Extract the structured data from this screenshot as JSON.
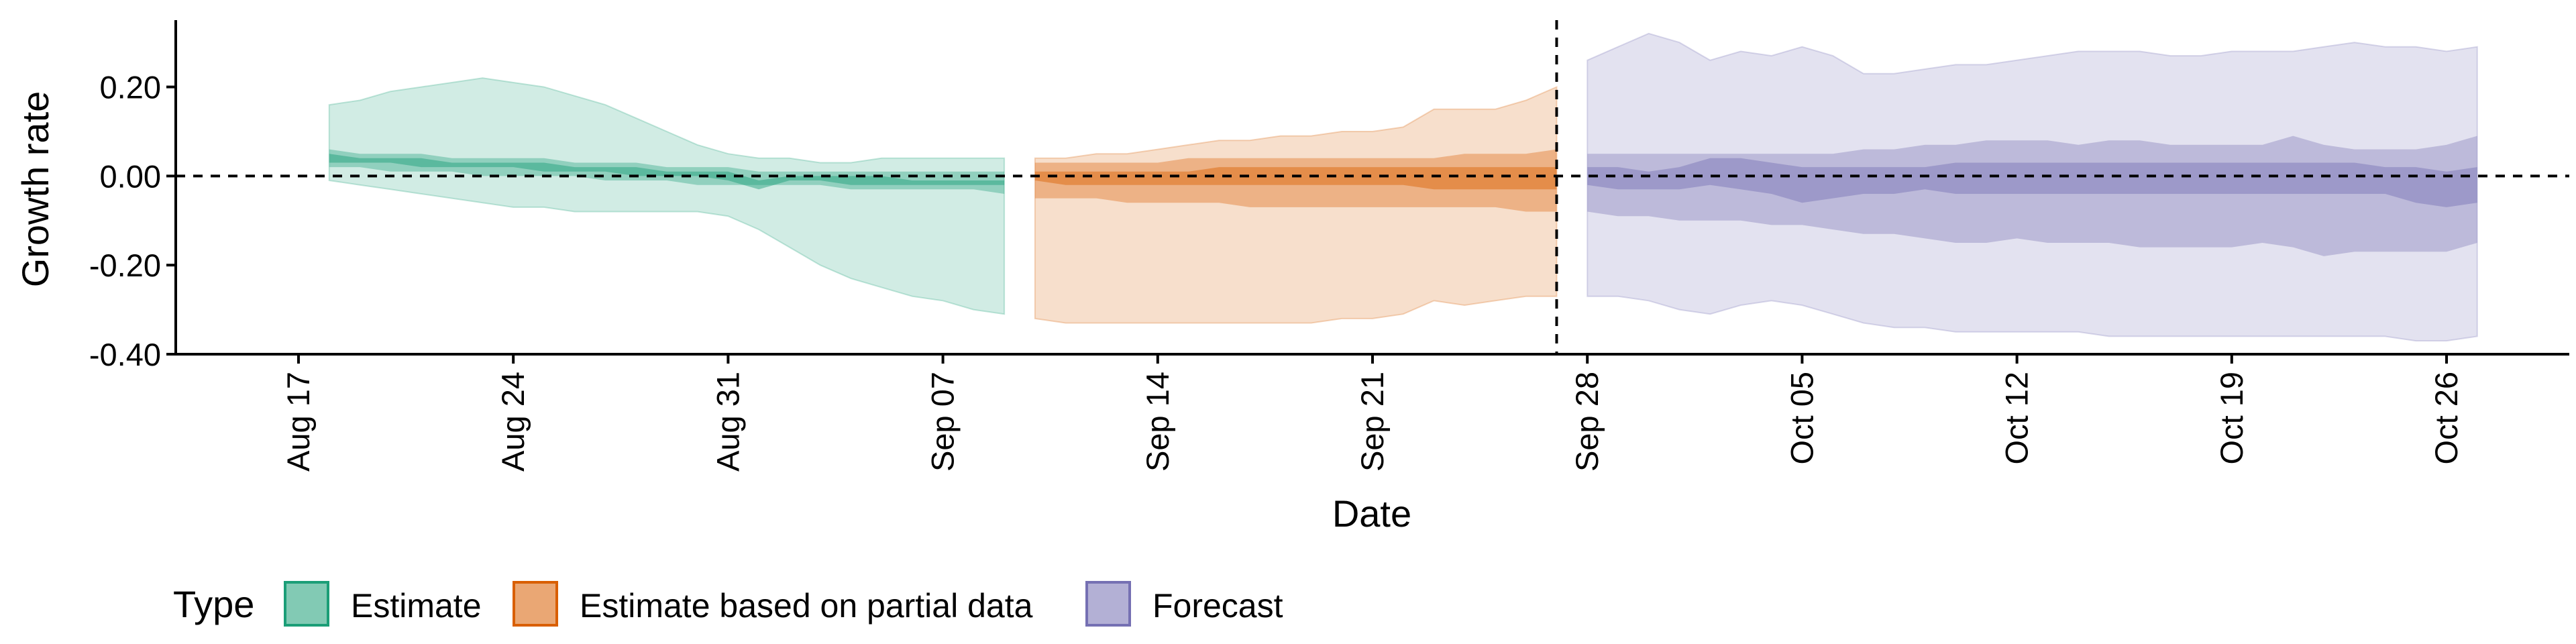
{
  "chart_data": {
    "type": "area",
    "xlabel": "Date",
    "ylabel": "Growth rate",
    "xlim": [
      "2020-08-13",
      "2020-10-30"
    ],
    "ylim": [
      -0.4,
      0.35
    ],
    "x_ticks": [
      {
        "date": "2020-08-17",
        "label": "Aug 17"
      },
      {
        "date": "2020-08-24",
        "label": "Aug 24"
      },
      {
        "date": "2020-08-31",
        "label": "Aug 31"
      },
      {
        "date": "2020-09-07",
        "label": "Sep 07"
      },
      {
        "date": "2020-09-14",
        "label": "Sep 14"
      },
      {
        "date": "2020-09-21",
        "label": "Sep 21"
      },
      {
        "date": "2020-09-28",
        "label": "Sep 28"
      },
      {
        "date": "2020-10-05",
        "label": "Oct 05"
      },
      {
        "date": "2020-10-12",
        "label": "Oct 12"
      },
      {
        "date": "2020-10-19",
        "label": "Oct 19"
      },
      {
        "date": "2020-10-26",
        "label": "Oct 26"
      }
    ],
    "y_ticks": [
      {
        "value": 0.2,
        "label": "0.20"
      },
      {
        "value": 0.0,
        "label": "0.00"
      },
      {
        "value": -0.2,
        "label": "-0.20"
      },
      {
        "value": -0.4,
        "label": "-0.40"
      }
    ],
    "reference_lines": {
      "horizontal_y": 0.0,
      "vertical_date": "2020-09-27"
    },
    "grid": false,
    "legend": {
      "title": "Type",
      "position": "bottom-left",
      "items": [
        {
          "label": "Estimate",
          "color": "#1b9e77"
        },
        {
          "label": "Estimate based on partial data",
          "color": "#d95f02"
        },
        {
          "label": "Forecast",
          "color": "#7570b3"
        }
      ]
    },
    "series": [
      {
        "name": "Estimate",
        "color": "#1b9e77",
        "x": [
          "2020-08-18",
          "2020-08-19",
          "2020-08-20",
          "2020-08-21",
          "2020-08-22",
          "2020-08-23",
          "2020-08-24",
          "2020-08-25",
          "2020-08-26",
          "2020-08-27",
          "2020-08-28",
          "2020-08-29",
          "2020-08-30",
          "2020-08-31",
          "2020-09-01",
          "2020-09-02",
          "2020-09-03",
          "2020-09-04",
          "2020-09-05",
          "2020-09-06",
          "2020-09-07",
          "2020-09-08",
          "2020-09-09"
        ],
        "lower_90": [
          -0.01,
          -0.02,
          -0.03,
          -0.04,
          -0.05,
          -0.06,
          -0.07,
          -0.07,
          -0.08,
          -0.08,
          -0.08,
          -0.08,
          -0.08,
          -0.09,
          -0.12,
          -0.16,
          -0.2,
          -0.23,
          -0.25,
          -0.27,
          -0.28,
          -0.3,
          -0.31
        ],
        "upper_90": [
          0.16,
          0.17,
          0.19,
          0.2,
          0.21,
          0.22,
          0.21,
          0.2,
          0.18,
          0.16,
          0.13,
          0.1,
          0.07,
          0.05,
          0.04,
          0.04,
          0.03,
          0.03,
          0.04,
          0.04,
          0.04,
          0.04,
          0.04
        ],
        "lower_50": [
          0.02,
          0.02,
          0.01,
          0.01,
          0.01,
          0.0,
          0.0,
          0.0,
          0.0,
          -0.01,
          -0.01,
          -0.01,
          -0.02,
          -0.02,
          -0.02,
          -0.02,
          -0.02,
          -0.03,
          -0.03,
          -0.03,
          -0.03,
          -0.03,
          -0.04
        ],
        "upper_50": [
          0.06,
          0.05,
          0.05,
          0.05,
          0.04,
          0.04,
          0.04,
          0.04,
          0.03,
          0.03,
          0.03,
          0.02,
          0.02,
          0.02,
          0.01,
          0.01,
          0.01,
          0.01,
          0.01,
          0.01,
          0.01,
          0.01,
          0.01
        ],
        "lower_20": [
          0.03,
          0.03,
          0.03,
          0.02,
          0.02,
          0.02,
          0.02,
          0.01,
          0.01,
          0.01,
          0.0,
          0.0,
          0.0,
          -0.01,
          -0.03,
          -0.01,
          -0.01,
          -0.02,
          -0.02,
          -0.02,
          -0.02,
          -0.02,
          -0.02
        ],
        "upper_20": [
          0.05,
          0.04,
          0.04,
          0.04,
          0.03,
          0.03,
          0.03,
          0.03,
          0.02,
          0.02,
          0.02,
          0.01,
          0.01,
          0.01,
          -0.01,
          0.0,
          0.0,
          0.0,
          0.0,
          -0.01,
          -0.01,
          -0.01,
          -0.01
        ]
      },
      {
        "name": "Estimate based on partial data",
        "color": "#d95f02",
        "x": [
          "2020-09-10",
          "2020-09-11",
          "2020-09-12",
          "2020-09-13",
          "2020-09-14",
          "2020-09-15",
          "2020-09-16",
          "2020-09-17",
          "2020-09-18",
          "2020-09-19",
          "2020-09-20",
          "2020-09-21",
          "2020-09-22",
          "2020-09-23",
          "2020-09-24",
          "2020-09-25",
          "2020-09-26",
          "2020-09-27"
        ],
        "lower_90": [
          -0.32,
          -0.33,
          -0.33,
          -0.33,
          -0.33,
          -0.33,
          -0.33,
          -0.33,
          -0.33,
          -0.33,
          -0.32,
          -0.32,
          -0.31,
          -0.28,
          -0.29,
          -0.28,
          -0.27,
          -0.27
        ],
        "upper_90": [
          0.04,
          0.04,
          0.05,
          0.05,
          0.06,
          0.07,
          0.08,
          0.08,
          0.09,
          0.09,
          0.1,
          0.1,
          0.11,
          0.15,
          0.15,
          0.15,
          0.17,
          0.2
        ],
        "lower_50": [
          -0.05,
          -0.05,
          -0.05,
          -0.06,
          -0.06,
          -0.06,
          -0.06,
          -0.07,
          -0.07,
          -0.07,
          -0.07,
          -0.07,
          -0.07,
          -0.07,
          -0.07,
          -0.07,
          -0.08,
          -0.08
        ],
        "upper_50": [
          0.03,
          0.03,
          0.03,
          0.03,
          0.03,
          0.04,
          0.04,
          0.04,
          0.04,
          0.04,
          0.04,
          0.04,
          0.04,
          0.04,
          0.05,
          0.05,
          0.05,
          0.06
        ],
        "lower_20": [
          -0.01,
          -0.02,
          -0.02,
          -0.02,
          -0.02,
          -0.02,
          -0.02,
          -0.02,
          -0.02,
          -0.02,
          -0.02,
          -0.02,
          -0.02,
          -0.03,
          -0.03,
          -0.03,
          -0.03,
          -0.03
        ],
        "upper_20": [
          0.01,
          0.01,
          0.01,
          0.01,
          0.01,
          0.01,
          0.02,
          0.02,
          0.02,
          0.02,
          0.02,
          0.02,
          0.02,
          0.02,
          0.02,
          0.02,
          0.02,
          0.02
        ]
      },
      {
        "name": "Forecast",
        "color": "#7570b3",
        "x": [
          "2020-09-28",
          "2020-09-29",
          "2020-09-30",
          "2020-10-01",
          "2020-10-02",
          "2020-10-03",
          "2020-10-04",
          "2020-10-05",
          "2020-10-06",
          "2020-10-07",
          "2020-10-08",
          "2020-10-09",
          "2020-10-10",
          "2020-10-11",
          "2020-10-12",
          "2020-10-13",
          "2020-10-14",
          "2020-10-15",
          "2020-10-16",
          "2020-10-17",
          "2020-10-18",
          "2020-10-19",
          "2020-10-20",
          "2020-10-21",
          "2020-10-22",
          "2020-10-23",
          "2020-10-24",
          "2020-10-25",
          "2020-10-26",
          "2020-10-27"
        ],
        "lower_90": [
          -0.27,
          -0.27,
          -0.28,
          -0.3,
          -0.31,
          -0.29,
          -0.28,
          -0.29,
          -0.31,
          -0.33,
          -0.34,
          -0.34,
          -0.35,
          -0.35,
          -0.35,
          -0.35,
          -0.35,
          -0.36,
          -0.36,
          -0.36,
          -0.36,
          -0.36,
          -0.36,
          -0.36,
          -0.36,
          -0.36,
          -0.36,
          -0.37,
          -0.37,
          -0.36
        ],
        "upper_90": [
          0.26,
          0.29,
          0.32,
          0.3,
          0.26,
          0.28,
          0.27,
          0.29,
          0.27,
          0.23,
          0.23,
          0.24,
          0.25,
          0.25,
          0.26,
          0.27,
          0.28,
          0.28,
          0.28,
          0.27,
          0.27,
          0.28,
          0.28,
          0.28,
          0.29,
          0.3,
          0.29,
          0.29,
          0.28,
          0.29
        ],
        "lower_50": [
          -0.08,
          -0.09,
          -0.09,
          -0.1,
          -0.1,
          -0.1,
          -0.11,
          -0.11,
          -0.12,
          -0.13,
          -0.13,
          -0.14,
          -0.15,
          -0.15,
          -0.14,
          -0.15,
          -0.15,
          -0.15,
          -0.16,
          -0.16,
          -0.16,
          -0.16,
          -0.15,
          -0.16,
          -0.18,
          -0.17,
          -0.17,
          -0.17,
          -0.17,
          -0.15
        ],
        "upper_50": [
          0.05,
          0.05,
          0.05,
          0.05,
          0.05,
          0.05,
          0.05,
          0.05,
          0.05,
          0.06,
          0.06,
          0.07,
          0.07,
          0.08,
          0.08,
          0.08,
          0.07,
          0.08,
          0.08,
          0.07,
          0.07,
          0.07,
          0.07,
          0.09,
          0.07,
          0.06,
          0.06,
          0.06,
          0.07,
          0.09
        ],
        "lower_20": [
          -0.02,
          -0.03,
          -0.03,
          -0.03,
          -0.02,
          -0.03,
          -0.04,
          -0.06,
          -0.05,
          -0.04,
          -0.04,
          -0.03,
          -0.04,
          -0.04,
          -0.04,
          -0.04,
          -0.04,
          -0.04,
          -0.04,
          -0.04,
          -0.04,
          -0.04,
          -0.04,
          -0.04,
          -0.04,
          -0.04,
          -0.04,
          -0.06,
          -0.07,
          -0.06
        ],
        "upper_20": [
          0.02,
          0.02,
          0.01,
          0.02,
          0.04,
          0.04,
          0.03,
          0.02,
          0.02,
          0.02,
          0.02,
          0.02,
          0.03,
          0.03,
          0.03,
          0.03,
          0.03,
          0.03,
          0.03,
          0.03,
          0.03,
          0.03,
          0.03,
          0.03,
          0.03,
          0.03,
          0.02,
          0.02,
          0.01,
          0.02
        ]
      }
    ]
  }
}
